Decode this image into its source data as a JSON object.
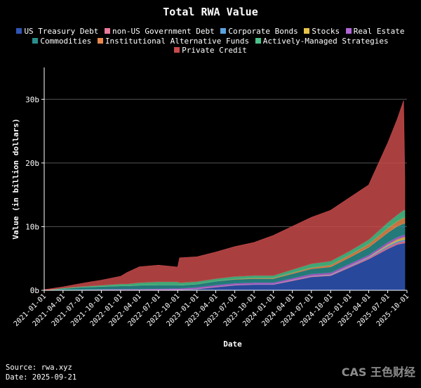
{
  "chart_data": {
    "type": "area",
    "stacked": true,
    "title": "Total RWA Value",
    "xlabel": "Date",
    "ylabel": "Value (in billion dollars)",
    "ylim": [
      0,
      35
    ],
    "yticks": [
      0,
      10,
      20,
      30
    ],
    "ytick_labels": [
      "0b",
      "10b",
      "20b",
      "30b"
    ],
    "xticks": [
      "2021-01-01",
      "2021-04-01",
      "2021-07-01",
      "2021-10-01",
      "2022-01-01",
      "2022-04-01",
      "2022-07-01",
      "2022-10-01",
      "2023-01-01",
      "2023-04-01",
      "2023-07-01",
      "2023-10-01",
      "2024-01-01",
      "2024-04-01",
      "2024-07-01",
      "2024-10-01",
      "2025-01-01",
      "2025-04-01",
      "2025-07-01",
      "2025-10-01"
    ],
    "grid": "horizontal",
    "legend_position": "top",
    "x": [
      "2021-01-01",
      "2021-04-01",
      "2021-07-01",
      "2021-10-01",
      "2022-01-01",
      "2022-02-01",
      "2022-04-01",
      "2022-07-01",
      "2022-10-01",
      "2022-10-10",
      "2023-01-01",
      "2023-04-01",
      "2023-07-01",
      "2023-10-01",
      "2024-01-01",
      "2024-04-01",
      "2024-07-01",
      "2024-10-01",
      "2025-01-01",
      "2025-04-01",
      "2025-07-01",
      "2025-08-15",
      "2025-09-15",
      "2025-09-21"
    ],
    "series": [
      {
        "name": "US Treasury Debt",
        "color": "#2f56b6",
        "values": [
          0,
          0,
          0,
          0,
          0,
          0,
          0,
          0.05,
          0.1,
          0.1,
          0.2,
          0.5,
          0.8,
          0.9,
          0.9,
          1.5,
          2.1,
          2.3,
          3.6,
          4.9,
          6.5,
          7.2,
          7.4,
          7.4
        ]
      },
      {
        "name": "non-US Government Debt",
        "color": "#e97a9a",
        "values": [
          0,
          0,
          0,
          0,
          0,
          0,
          0,
          0,
          0,
          0,
          0.05,
          0.05,
          0.05,
          0.05,
          0.05,
          0.1,
          0.1,
          0.1,
          0.15,
          0.2,
          0.3,
          0.3,
          0.35,
          0.35
        ]
      },
      {
        "name": "Corporate Bonds",
        "color": "#5aa3e0",
        "values": [
          0,
          0,
          0,
          0,
          0,
          0,
          0,
          0,
          0,
          0,
          0.02,
          0.02,
          0.02,
          0.02,
          0.02,
          0.03,
          0.05,
          0.05,
          0.1,
          0.1,
          0.2,
          0.2,
          0.2,
          0.2
        ]
      },
      {
        "name": "Stocks",
        "color": "#e8c34b",
        "values": [
          0,
          0,
          0,
          0,
          0,
          0,
          0,
          0,
          0,
          0,
          0,
          0,
          0,
          0,
          0,
          0.02,
          0.02,
          0.03,
          0.03,
          0.05,
          0.2,
          0.3,
          0.4,
          0.4
        ]
      },
      {
        "name": "Real Estate",
        "color": "#b064d6",
        "values": [
          0,
          0.05,
          0.1,
          0.15,
          0.2,
          0.2,
          0.2,
          0.2,
          0.2,
          0.2,
          0.2,
          0.25,
          0.25,
          0.25,
          0.25,
          0.25,
          0.3,
          0.3,
          0.3,
          0.3,
          0.35,
          0.35,
          0.35,
          0.35
        ]
      },
      {
        "name": "Commodities",
        "color": "#2a8e8e",
        "values": [
          0,
          0.2,
          0.4,
          0.45,
          0.5,
          0.5,
          0.6,
          0.6,
          0.55,
          0.5,
          0.5,
          0.6,
          0.6,
          0.6,
          0.6,
          0.7,
          0.8,
          0.9,
          1.0,
          1.2,
          1.5,
          1.7,
          1.8,
          1.8
        ]
      },
      {
        "name": "Institutional Alternative Funds",
        "color": "#e8894b",
        "values": [
          0,
          0,
          0,
          0,
          0,
          0,
          0,
          0,
          0,
          0,
          0,
          0,
          0.05,
          0.1,
          0.1,
          0.15,
          0.2,
          0.3,
          0.4,
          0.5,
          0.7,
          0.8,
          0.9,
          0.9
        ]
      },
      {
        "name": "Actively-Managed Strategies",
        "color": "#4cc38a",
        "values": [
          0,
          0.1,
          0.1,
          0.2,
          0.3,
          0.3,
          0.4,
          0.5,
          0.5,
          0.4,
          0.4,
          0.4,
          0.4,
          0.4,
          0.4,
          0.5,
          0.6,
          0.6,
          0.6,
          0.7,
          0.9,
          1.0,
          1.2,
          1.2
        ]
      },
      {
        "name": "Private Credit",
        "color": "#c84a4a",
        "values": [
          0.1,
          0.2,
          0.5,
          0.8,
          1.2,
          1.8,
          2.5,
          2.6,
          2.3,
          3.9,
          3.9,
          4.2,
          4.7,
          5.2,
          6.3,
          6.8,
          7.3,
          8.0,
          8.4,
          8.6,
          12.5,
          15.0,
          17.2,
          5.0
        ]
      }
    ]
  },
  "footer": {
    "source": "Source: rwa.xyz",
    "date": "Date: 2025-09-21"
  },
  "watermark": "CAS 王色财经"
}
